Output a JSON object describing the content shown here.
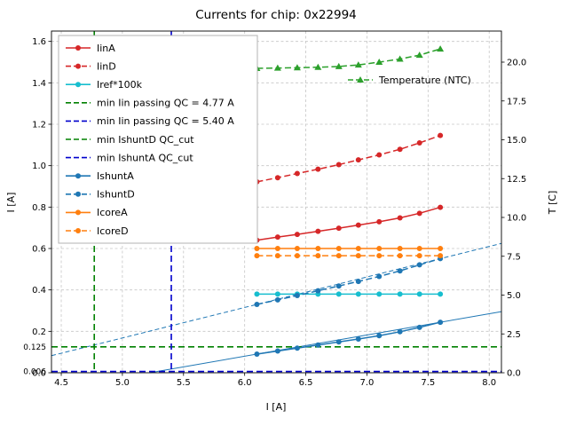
{
  "chart_data": {
    "type": "line",
    "title": "Currents for chip: 0x22994",
    "xlabel": "I [A]",
    "ylabel_left": "I [A]",
    "ylabel_right": "T [C]",
    "grid": true,
    "xlim": [
      4.42,
      8.1
    ],
    "ylim_left": [
      0.0,
      1.65
    ],
    "ylim_right": [
      0.0,
      22.0
    ],
    "x_ticks": [
      4.5,
      5.0,
      5.5,
      6.0,
      6.5,
      7.0,
      7.5,
      8.0
    ],
    "y_ticks_left": [
      0.0,
      0.2,
      0.4,
      0.6,
      0.8,
      1.0,
      1.2,
      1.4,
      1.6
    ],
    "y_ticks_right": [
      0.0,
      2.5,
      5.0,
      7.5,
      10.0,
      12.5,
      15.0,
      17.5,
      20.0
    ],
    "extra_y_tick_labels": [
      {
        "value": 0.125,
        "label": "0.125"
      },
      {
        "value": 0.006,
        "label": "0.006"
      }
    ],
    "x": [
      6.1,
      6.27,
      6.43,
      6.6,
      6.77,
      6.93,
      7.1,
      7.27,
      7.43,
      7.6
    ],
    "series": [
      {
        "name": "IinA",
        "axis": "left",
        "color": "#d62728",
        "dash": "solid",
        "marker": "circle",
        "values": [
          0.64,
          0.655,
          0.668,
          0.683,
          0.698,
          0.713,
          0.729,
          0.748,
          0.77,
          0.799
        ]
      },
      {
        "name": "IinD",
        "axis": "left",
        "color": "#d62728",
        "dash": "dashed",
        "marker": "circle",
        "values": [
          0.922,
          0.942,
          0.962,
          0.983,
          1.005,
          1.028,
          1.052,
          1.079,
          1.11,
          1.146
        ]
      },
      {
        "name": "Iref*100k",
        "axis": "left",
        "color": "#17becf",
        "dash": "solid",
        "marker": "circle",
        "values": [
          0.38,
          0.38,
          0.38,
          0.38,
          0.38,
          0.38,
          0.38,
          0.38,
          0.38,
          0.38
        ]
      },
      {
        "name": "IshuntA",
        "axis": "left",
        "color": "#1f77b4",
        "dash": "solid",
        "marker": "circle",
        "values": [
          0.09,
          0.105,
          0.119,
          0.134,
          0.149,
          0.163,
          0.179,
          0.198,
          0.219,
          0.244
        ]
      },
      {
        "name": "IshuntD",
        "axis": "left",
        "color": "#1f77b4",
        "dash": "dashed",
        "marker": "circle",
        "values": [
          0.33,
          0.352,
          0.373,
          0.396,
          0.419,
          0.441,
          0.465,
          0.492,
          0.521,
          0.551
        ]
      },
      {
        "name": "IcoreA",
        "axis": "left",
        "color": "#ff7f0e",
        "dash": "solid",
        "marker": "circle",
        "values": [
          0.6,
          0.6,
          0.6,
          0.6,
          0.6,
          0.6,
          0.6,
          0.6,
          0.6,
          0.6
        ]
      },
      {
        "name": "IcoreD",
        "axis": "left",
        "color": "#ff7f0e",
        "dash": "dashed",
        "marker": "circle",
        "values": [
          0.565,
          0.565,
          0.565,
          0.565,
          0.565,
          0.565,
          0.565,
          0.565,
          0.565,
          0.565
        ]
      },
      {
        "name": "Temperature (NTC)",
        "axis": "right",
        "color": "#2ca02c",
        "dash": "dashed",
        "marker": "triangle",
        "values": [
          19.6,
          19.62,
          19.64,
          19.67,
          19.72,
          19.82,
          20.0,
          20.2,
          20.45,
          20.85
        ]
      }
    ],
    "fit_lines": [
      {
        "name": "IshuntA linear fit",
        "color": "#1f77b4",
        "dash": "solid",
        "slope": 0.1027,
        "intercept": -0.5365
      },
      {
        "name": "IshuntD linear fit",
        "color": "#1f77b4",
        "dash": "dashed",
        "slope": 0.1473,
        "intercept": -0.5685
      }
    ],
    "vlines": [
      {
        "x": 4.77,
        "color": "#008000",
        "dash": "dashed",
        "label": "min Iin passing QC = 4.77 A"
      },
      {
        "x": 5.4,
        "color": "#0000cc",
        "dash": "dashed",
        "label": "min Iin passing QC = 5.40 A"
      }
    ],
    "hlines": [
      {
        "y": 0.125,
        "color": "#008000",
        "dash": "dashed",
        "label": "min IshuntD QC_cut"
      },
      {
        "y": 0.006,
        "color": "#0000cc",
        "dash": "dashed",
        "label": "min IshuntA QC_cut"
      }
    ],
    "legend_main": {
      "position": "upper-left",
      "entries": [
        {
          "label": "IinA",
          "color": "#d62728",
          "dash": "solid",
          "marker": "circle"
        },
        {
          "label": "IinD",
          "color": "#d62728",
          "dash": "dashed",
          "marker": "circle"
        },
        {
          "label": "Iref*100k",
          "color": "#17becf",
          "dash": "solid",
          "marker": "circle"
        },
        {
          "label": "min Iin passing QC = 4.77 A",
          "color": "#008000",
          "dash": "dashed",
          "marker": "none"
        },
        {
          "label": "min Iin passing QC = 5.40 A",
          "color": "#0000cc",
          "dash": "dashed",
          "marker": "none"
        },
        {
          "label": "min IshuntD QC_cut",
          "color": "#008000",
          "dash": "dashed",
          "marker": "none"
        },
        {
          "label": "min IshuntA QC_cut",
          "color": "#0000cc",
          "dash": "dashed",
          "marker": "none"
        },
        {
          "label": "IshuntA",
          "color": "#1f77b4",
          "dash": "solid",
          "marker": "circle"
        },
        {
          "label": "IshuntD",
          "color": "#1f77b4",
          "dash": "dashed",
          "marker": "circle"
        },
        {
          "label": "IcoreA",
          "color": "#ff7f0e",
          "dash": "solid",
          "marker": "circle"
        },
        {
          "label": "IcoreD",
          "color": "#ff7f0e",
          "dash": "dashed",
          "marker": "circle"
        }
      ]
    },
    "legend_right": {
      "position": "upper-right",
      "entries": [
        {
          "label": "Temperature (NTC)",
          "color": "#2ca02c",
          "dash": "dashed",
          "marker": "triangle"
        }
      ]
    }
  }
}
